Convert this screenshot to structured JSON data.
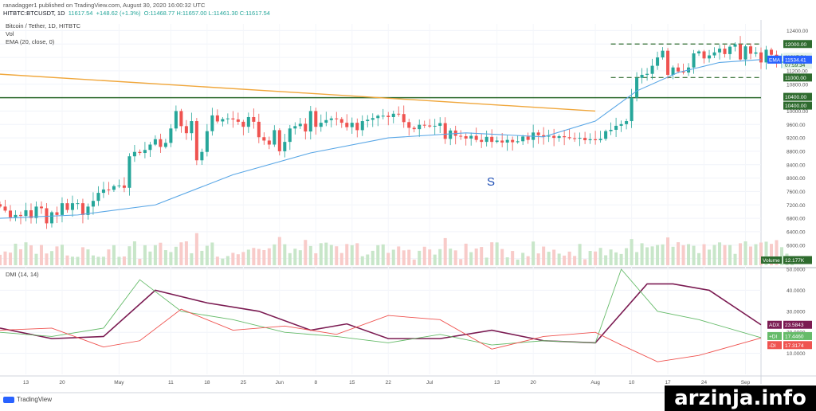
{
  "header": {
    "publish_line": "ranadagger1 published on TradingView.com, August 30, 2020 16:00:32 UTC",
    "symbol": "HITBTC:BTCUSDT, 1D",
    "price": "11617.54",
    "change": "+148.62 (+1.3%)",
    "ohlc": "O:11468.77 H:11657.00 L:11461.30 C:11617.54"
  },
  "main_legend": {
    "pair": "Bitcoin / Tether, 1D, HITBTC",
    "vol": "Vol",
    "ema": "EMA (20, close, 0)"
  },
  "dmi_legend": "DMI (14, 14)",
  "marker_label": "S",
  "brand": "TradingView",
  "watermark": "arzinja.info",
  "colors": {
    "up": "#26a69a",
    "down": "#ef5350",
    "ema": "#5aa7e6",
    "trendline": "#f0a73c",
    "support": "#2e6b2e",
    "adx": "#7b1b52",
    "plus_di": "#66bb6a",
    "minus_di": "#ef5350",
    "volume_up": "#c8e6c9",
    "volume_down": "#f8cbc9"
  },
  "tags": {
    "level_12000": "12000.00",
    "last_price": "11617.54",
    "countdown": "07:59:34",
    "ema_label": "EMA",
    "ema_value": "11534.41",
    "level_11000": "11000.00",
    "level_10400a": "10400.00",
    "level_10400b": "10400.00",
    "volume_label": "Volume",
    "volume_value": "12.177K",
    "adx_label": "ADX",
    "adx_value": "23.5843",
    "plus_di_label": "+DI",
    "plus_di_value": "17.4460",
    "minus_di_label": "-DI",
    "minus_di_value": "17.3174"
  },
  "chart_data": [
    {
      "type": "candlestick",
      "title": "Bitcoin / Tether, 1D, HITBTC",
      "ylim": [
        5400,
        12600
      ],
      "price_ticks": [
        "12400.00",
        "12000.00",
        "11600.00",
        "11200.00",
        "10800.00",
        "10400.00",
        "10000.00",
        "9600.00",
        "9200.00",
        "8800.00",
        "8400.00",
        "8000.00",
        "7600.00",
        "7200.00",
        "6800.00",
        "6400.00",
        "6000.00",
        "5600.00"
      ],
      "x_ticks": [
        "13",
        "20",
        "May",
        "11",
        "18",
        "25",
        "Jun",
        "8",
        "15",
        "22",
        "Jul",
        "13",
        "20",
        "Aug",
        "10",
        "17",
        "24",
        "Sep"
      ],
      "x_tick_days": [
        0,
        7,
        18,
        28,
        35,
        42,
        49,
        56,
        63,
        70,
        78,
        91,
        98,
        110,
        117,
        124,
        131,
        139
      ],
      "day_range": [
        -5,
        142
      ],
      "horizontal_levels": [
        {
          "price": 12000,
          "style": "dashed"
        },
        {
          "price": 11000,
          "style": "dashed"
        },
        {
          "price": 10400,
          "style": "solid"
        }
      ],
      "trendline": {
        "from": [
          -5,
          11100
        ],
        "to": [
          110,
          10000
        ]
      },
      "closes": [
        7150,
        7030,
        6830,
        6900,
        6870,
        7040,
        6810,
        7150,
        7100,
        6650,
        6980,
        6900,
        7250,
        7050,
        7250,
        7250,
        6900,
        7150,
        7320,
        7560,
        7660,
        7650,
        7760,
        7780,
        7710,
        8650,
        8780,
        8750,
        8840,
        9000,
        9160,
        8930,
        9050,
        9480,
        10000,
        9550,
        9340,
        9700,
        8530,
        8780,
        9400,
        9870,
        9690,
        9760,
        9780,
        9750,
        9680,
        9530,
        9820,
        9680,
        9220,
        9120,
        9000,
        9430,
        8800,
        9080,
        9480,
        9550,
        9620,
        9390,
        10000,
        9530,
        9650,
        9730,
        9780,
        9760,
        9650,
        9520,
        9650,
        9430,
        9700,
        9740,
        9790,
        9860,
        9860,
        9820,
        9920,
        9910,
        9670,
        9500,
        9460,
        9590,
        9570,
        9540,
        9560,
        9640,
        9170,
        9420,
        9260,
        9250,
        9180,
        9260,
        9140,
        9080,
        9230,
        9080,
        9120,
        9060,
        9140,
        9070,
        9100,
        9240,
        9140,
        9360,
        9280,
        9240,
        9260,
        9200,
        9250,
        9220,
        9190,
        9180,
        9200,
        9130,
        9160,
        9130,
        9170,
        9400,
        9440,
        9560,
        9610,
        9700,
        10400,
        10990,
        11080,
        11110,
        11350,
        11600,
        11800,
        11080,
        11300,
        11180,
        11150,
        11300,
        11720,
        11780,
        11570,
        11660,
        11750,
        11860,
        11700,
        11920,
        11990,
        11540,
        11930,
        11710,
        11750,
        11450,
        11830,
        11680,
        11460,
        11470,
        11580,
        11620
      ],
      "ema20_key": [
        [
          -5,
          6800
        ],
        [
          10,
          6900
        ],
        [
          25,
          7200
        ],
        [
          40,
          8100
        ],
        [
          55,
          8750
        ],
        [
          70,
          9200
        ],
        [
          85,
          9350
        ],
        [
          100,
          9230
        ],
        [
          110,
          9700
        ],
        [
          118,
          10600
        ],
        [
          126,
          11150
        ],
        [
          134,
          11450
        ],
        [
          142,
          11534
        ]
      ],
      "volume_note": "volume histogram shown below price pane, last value 12.177K"
    },
    {
      "type": "line",
      "title": "DMI (14, 14)",
      "ylim": [
        0,
        50
      ],
      "y_ticks": [
        "50.0000",
        "40.0000",
        "30.0000",
        "20.0000",
        "10.0000"
      ],
      "series": [
        {
          "name": "ADX",
          "x": [
            -5,
            5,
            15,
            25,
            35,
            45,
            55,
            62,
            70,
            80,
            90,
            100,
            110,
            120,
            125,
            132,
            142
          ],
          "values": [
            22,
            17,
            18,
            40,
            34,
            30,
            21,
            24,
            17,
            17,
            21,
            16,
            15,
            43,
            43,
            40,
            23.58
          ]
        },
        {
          "name": "+DI",
          "x": [
            -5,
            5,
            15,
            22,
            30,
            40,
            50,
            60,
            70,
            80,
            90,
            100,
            110,
            115,
            122,
            130,
            142
          ],
          "values": [
            20,
            18,
            22,
            45,
            30,
            26,
            20,
            18,
            15,
            19,
            14,
            16,
            15,
            50,
            30,
            26,
            17.45
          ]
        },
        {
          "name": "-DI",
          "x": [
            -5,
            5,
            15,
            22,
            30,
            40,
            50,
            60,
            70,
            80,
            90,
            100,
            110,
            115,
            122,
            130,
            142
          ],
          "values": [
            21,
            22,
            13,
            16,
            31,
            21,
            23,
            19,
            28,
            26,
            12,
            18,
            20,
            14,
            6,
            9,
            17.32
          ]
        }
      ]
    }
  ]
}
